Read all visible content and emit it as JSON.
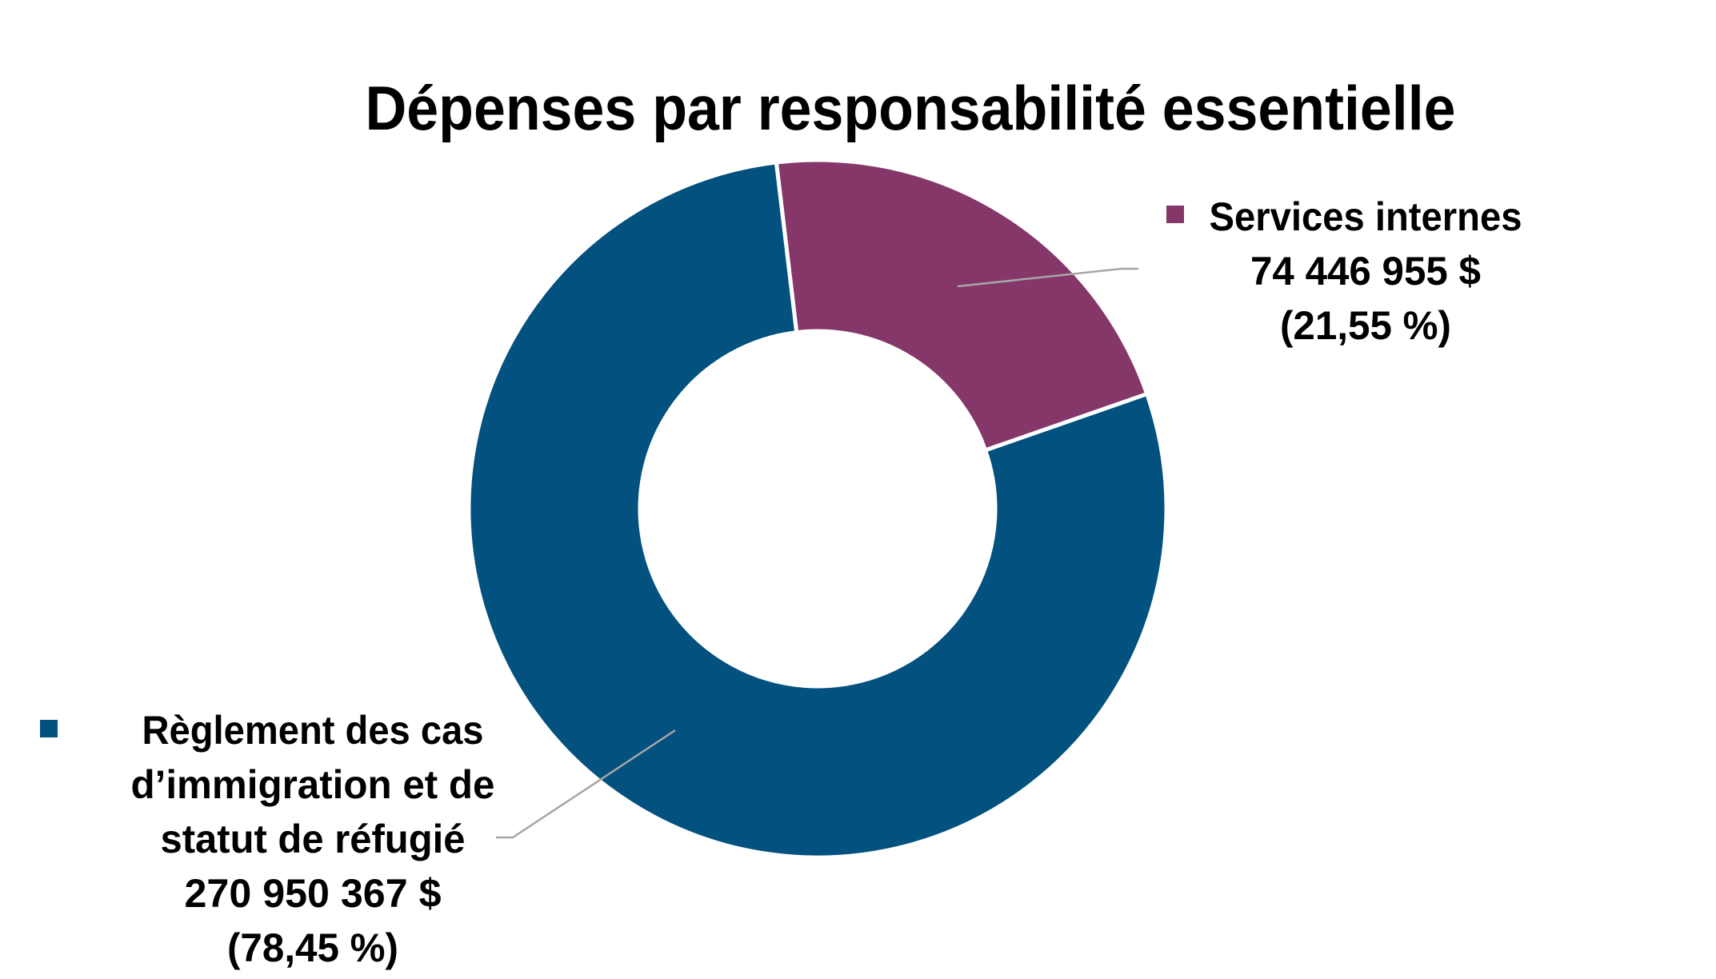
{
  "chart_data": {
    "type": "pie",
    "variant": "donut",
    "title": "Dépenses par responsabilité essentielle",
    "legend": "labels beside slices with leader lines",
    "series": [
      {
        "name": "Services internes",
        "value": 74446955,
        "value_label": "74 446 955 $",
        "percent": 21.55,
        "percent_label": "(21,55 %)",
        "color": "#85376A",
        "label_lines": [
          "Services internes"
        ]
      },
      {
        "name": "Règlement des cas d’immigration et de statut de réfugié",
        "value": 270950367,
        "value_label": "270 950 367 $",
        "percent": 78.45,
        "percent_label": "(78,45 %)",
        "color": "#03517F",
        "label_lines": [
          "Règlement des cas",
          "d’immigration et de",
          "statut de réfugié"
        ]
      }
    ]
  }
}
